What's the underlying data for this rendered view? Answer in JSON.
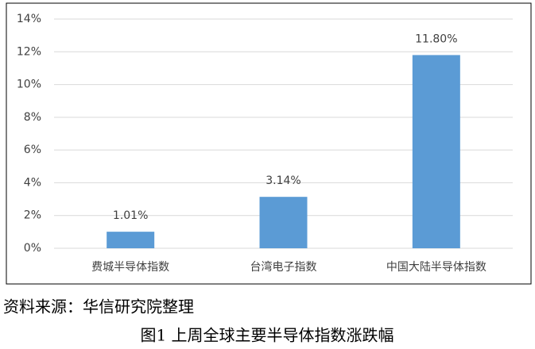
{
  "chart_data": {
    "type": "bar",
    "categories": [
      "费城半导体指数",
      "台湾电子指数",
      "中国大陆半导体指数"
    ],
    "values": [
      1.01,
      3.14,
      11.8
    ],
    "value_labels": [
      "1.01%",
      "3.14%",
      "11.80%"
    ],
    "color": "#5b9bd5",
    "ylim": [
      0,
      14
    ],
    "yticks": [
      {
        "value": 0,
        "label": "0%"
      },
      {
        "value": 2,
        "label": "2%"
      },
      {
        "value": 4,
        "label": "4%"
      },
      {
        "value": 6,
        "label": "6%"
      },
      {
        "value": 8,
        "label": "8%"
      },
      {
        "value": 10,
        "label": "10%"
      },
      {
        "value": 12,
        "label": "12%"
      },
      {
        "value": 14,
        "label": "14%"
      }
    ],
    "grid": true,
    "source": "资料来源：华信研究院整理",
    "caption": "图1 上周全球主要半导体指数涨跌幅"
  }
}
